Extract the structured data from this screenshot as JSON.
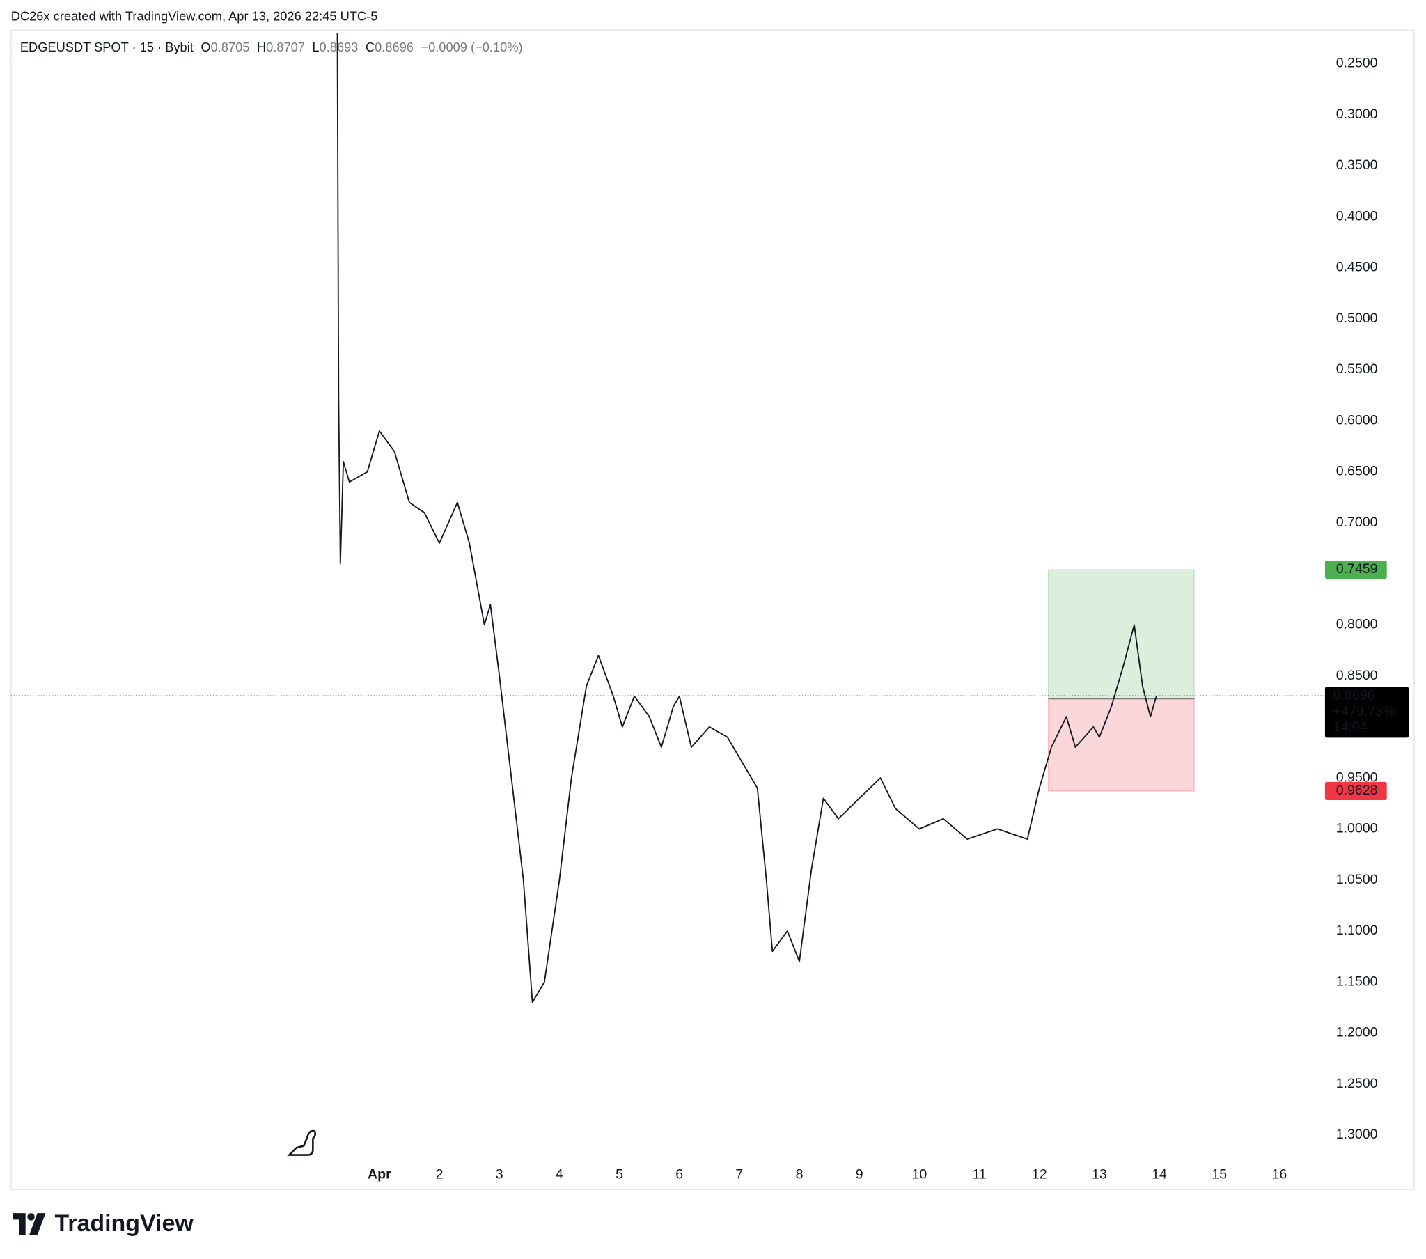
{
  "header": {
    "credit": "DC26x created with TradingView.com, Apr 13, 2026 22:45 UTC-5"
  },
  "chart_data": {
    "type": "line",
    "symbol": "EDGEUSDT SPOT · 15 · Bybit",
    "ohlc": [
      {
        "label": "O",
        "value": 0.8705
      },
      {
        "label": "H",
        "value": 0.8707
      },
      {
        "label": "L",
        "value": 0.8693
      },
      {
        "label": "C",
        "value": 0.8696
      }
    ],
    "change": "−0.0009 (−0.10%)",
    "x": [
      0.3,
      0.32,
      0.35,
      0.4,
      0.5,
      0.8,
      1.0,
      1.25,
      1.5,
      1.75,
      2.0,
      2.3,
      2.5,
      2.75,
      2.85,
      3.0,
      3.2,
      3.4,
      3.55,
      3.75,
      4.0,
      4.2,
      4.45,
      4.65,
      4.9,
      5.05,
      5.25,
      5.5,
      5.7,
      5.9,
      6.0,
      6.2,
      6.5,
      6.8,
      7.1,
      7.3,
      7.45,
      7.55,
      7.8,
      8.0,
      8.2,
      8.4,
      8.65,
      9.0,
      9.35,
      9.6,
      10.0,
      10.4,
      10.8,
      11.3,
      11.8,
      12.0,
      12.2,
      12.45,
      12.6,
      12.9,
      13.0,
      13.2,
      13.4,
      13.58,
      13.72,
      13.85,
      13.95
    ],
    "series": [
      {
        "color": "#131722",
        "values": [
          0.22,
          0.58,
          0.74,
          0.64,
          0.66,
          0.65,
          0.61,
          0.63,
          0.68,
          0.69,
          0.72,
          0.68,
          0.72,
          0.8,
          0.78,
          0.85,
          0.95,
          1.05,
          1.17,
          1.15,
          1.05,
          0.95,
          0.86,
          0.83,
          0.87,
          0.9,
          0.87,
          0.89,
          0.92,
          0.88,
          0.87,
          0.92,
          0.9,
          0.91,
          0.94,
          0.96,
          1.05,
          1.12,
          1.1,
          1.13,
          1.04,
          0.97,
          0.99,
          0.97,
          0.95,
          0.98,
          1.0,
          0.99,
          1.01,
          1.0,
          1.01,
          0.96,
          0.92,
          0.89,
          0.92,
          0.9,
          0.91,
          0.88,
          0.84,
          0.8,
          0.86,
          0.89,
          0.8696
        ]
      }
    ],
    "xlim": [
      -5.14,
      16.73
    ],
    "xticks": [
      {
        "value": 1,
        "label": "Apr"
      },
      2,
      3,
      4,
      5,
      6,
      7,
      8,
      9,
      10,
      11,
      12,
      13,
      14,
      15,
      16
    ],
    "ylim": [
      0.217,
      1.324
    ],
    "invert_y": true,
    "yticks": [
      {
        "value": 0.25,
        "label": "0.2500"
      },
      {
        "value": 0.3,
        "label": "0.3000"
      },
      {
        "value": 0.35,
        "label": "0.3500"
      },
      {
        "value": 0.4,
        "label": "0.4000"
      },
      {
        "value": 0.45,
        "label": "0.4500"
      },
      {
        "value": 0.5,
        "label": "0.5000"
      },
      {
        "value": 0.55,
        "label": "0.5500"
      },
      {
        "value": 0.6,
        "label": "0.6000"
      },
      {
        "value": 0.65,
        "label": "0.6500"
      },
      {
        "value": 0.7,
        "label": "0.7000"
      },
      {
        "value": 0.8,
        "label": "0.8000"
      },
      {
        "value": 0.85,
        "label": "0.8500"
      },
      {
        "value": 0.95,
        "label": "0.9500"
      },
      {
        "value": 1.0,
        "label": "1.0000"
      },
      {
        "value": 1.05,
        "label": "1.0500"
      },
      {
        "value": 1.1,
        "label": "1.1000"
      },
      {
        "value": 1.15,
        "label": "1.1500"
      },
      {
        "value": 1.2,
        "label": "1.2000"
      },
      {
        "value": 1.25,
        "label": "1.2500"
      },
      {
        "value": 1.3,
        "label": "1.3000"
      }
    ],
    "last_price": 0.8696,
    "last_change": "+479.73%",
    "countdown": "14:04",
    "position": {
      "x_range": [
        12.15,
        14.58
      ],
      "target": 0.7459,
      "entry": 0.8725,
      "stop": 0.9628,
      "target_color": "#4caf50",
      "entry_color": "#808080",
      "stop_color": "#f23645"
    }
  },
  "footer": {
    "brand": "TradingView"
  }
}
